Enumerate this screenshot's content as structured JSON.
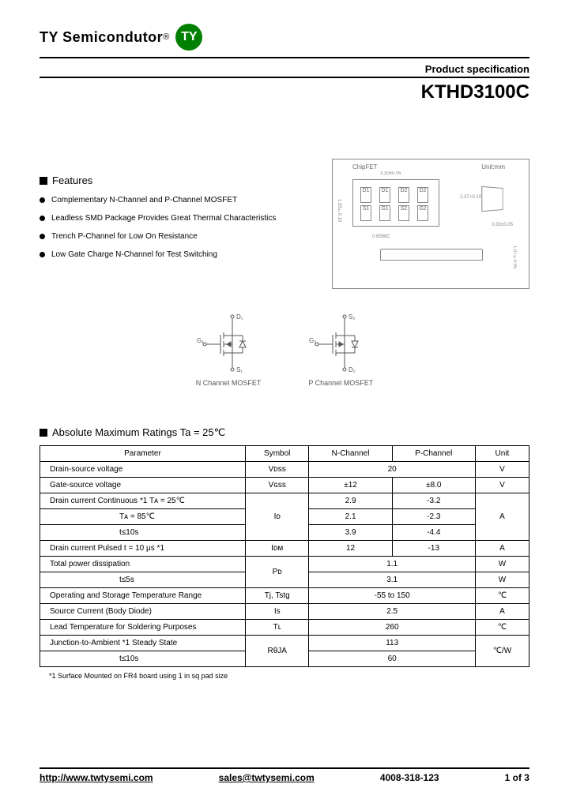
{
  "header": {
    "company": "TY Semicondutor",
    "reg": "®",
    "logo": "TY",
    "logo_bg": "#008000",
    "spec_label": "Product specification",
    "part_number": "KTHD3100C"
  },
  "features": {
    "title": "Features",
    "items": [
      "Complementary N-Channel and P-Channel MOSFET",
      "Leadless SMD Package Provides Great Thermal Characteristics",
      "Trench P-Channel for Low On Resistance",
      "Low Gate Charge N-Channel for Test Switching"
    ]
  },
  "package": {
    "type_label": "ChipFET",
    "unit_label": "Unit:mm",
    "pin_labels_top": [
      "D1",
      "D1",
      "D2",
      "D2"
    ],
    "pin_labels_bot": [
      "S1",
      "G1",
      "S2",
      "G2"
    ],
    "dim_width": "3.30±0.05",
    "dim_height": "1.95±0.10",
    "dim_pitch": "0.6588C",
    "dim_pad": "0.30±0.05",
    "dim_thick": "1.07±0.05",
    "dim_angle": "2.37+0.10"
  },
  "schematics": {
    "n_channel": {
      "d": "D₁",
      "g": "G₁",
      "s": "S₁",
      "label": "N Channel MOSFET"
    },
    "p_channel": {
      "d": "S₂",
      "g": "G₂",
      "s": "D₂",
      "label": "P Channel MOSFET"
    }
  },
  "ratings": {
    "title": "Absolute Maximum Ratings Ta = 25℃",
    "headers": [
      "Parameter",
      "Symbol",
      "N-Channel",
      "P-Channel",
      "Unit"
    ],
    "rows": [
      {
        "param": "Drain-source voltage",
        "symbol": "Vᴅss",
        "n": "20",
        "p": "",
        "unit": "V",
        "merge_np": true
      },
      {
        "param": "Gate-source voltage",
        "symbol": "Vɢss",
        "n": "±12",
        "p": "±8.0",
        "unit": "V"
      },
      {
        "param": "Drain current Continuous *1 Tᴀ = 25℃",
        "symbol": "Iᴅ",
        "n": "2.9",
        "p": "-3.2",
        "unit": "A",
        "rowspan_sym": 3,
        "rowspan_unit": 3
      },
      {
        "param": "Tᴀ = 85℃",
        "n": "2.1",
        "p": "-2.3",
        "sub": true
      },
      {
        "param": "t≤10s",
        "n": "3.9",
        "p": "-4.4",
        "sub": true
      },
      {
        "param": "Drain current Pulsed  t = 10 μs *1",
        "symbol": "Iᴅᴍ",
        "n": "12",
        "p": "-13",
        "unit": "A"
      },
      {
        "param": "Total power dissipation",
        "symbol": "Pᴅ",
        "n": "1.1",
        "p": "",
        "unit": "W",
        "merge_np": true,
        "rowspan_sym": 2
      },
      {
        "param": "t≤5s",
        "n": "3.1",
        "p": "",
        "unit": "W",
        "merge_np": true,
        "sub": true
      },
      {
        "param": "Operating and Storage Temperature Range",
        "symbol": "Tj, Tstg",
        "n": "-55 to 150",
        "p": "",
        "unit": "℃",
        "merge_np": true
      },
      {
        "param": "Source Current (Body Diode)",
        "symbol": "Is",
        "n": "2.5",
        "p": "",
        "unit": "A",
        "merge_np": true
      },
      {
        "param": "Lead Temperature for Soldering Purposes",
        "symbol": "Tʟ",
        "n": "260",
        "p": "",
        "unit": "℃",
        "merge_np": true
      },
      {
        "param": "Junction-to-Ambient *1           Steady State",
        "symbol": "RθJA",
        "n": "113",
        "p": "",
        "unit": "℃/W",
        "merge_np": true,
        "rowspan_sym": 2,
        "rowspan_unit": 2
      },
      {
        "param": "t≤10s",
        "n": "60",
        "p": "",
        "merge_np": true,
        "sub": true
      }
    ],
    "footnote": "*1 Surface Mounted on FR4 board using 1 in sq pad size"
  },
  "footer": {
    "url": "http://www.twtysemi.com",
    "email": "sales@twtysemi.com",
    "phone": "4008-318-123",
    "page": "1 of 3"
  }
}
